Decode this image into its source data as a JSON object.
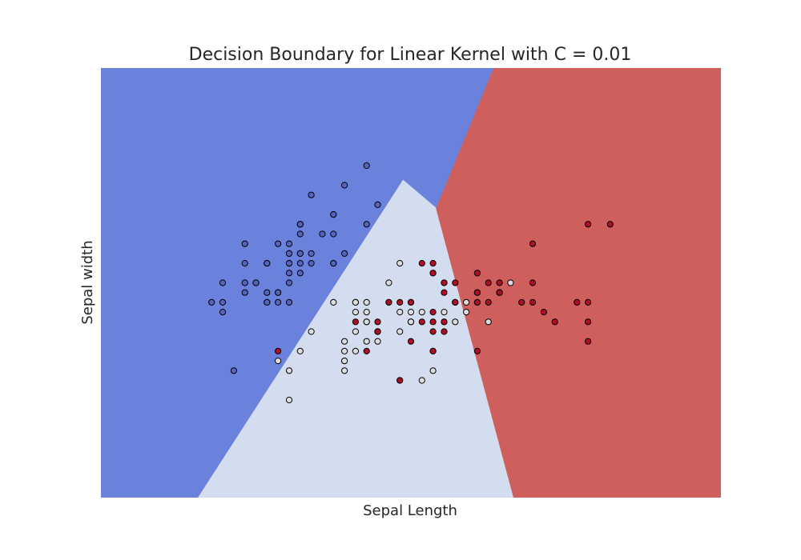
{
  "chart_data": {
    "type": "scatter",
    "title": "Decision Boundary for Linear Kernel with C = 0.01",
    "xlabel": "Sepal Length",
    "ylabel": "Sepal width",
    "xlim": [
      3.3,
      8.9
    ],
    "ylim": [
      1.0,
      5.4
    ],
    "grid": false,
    "legend": "none",
    "regions": [
      {
        "class": "setosa",
        "color": "#6b82dd",
        "polygon": [
          [
            3.3,
            5.4
          ],
          [
            6.85,
            5.4
          ],
          [
            6.33,
            3.96
          ],
          [
            6.03,
            4.25
          ],
          [
            4.18,
            1.0
          ],
          [
            3.3,
            1.0
          ]
        ]
      },
      {
        "class": "versicolor",
        "color": "#d4dcef",
        "polygon": [
          [
            4.18,
            1.0
          ],
          [
            6.03,
            4.25
          ],
          [
            6.33,
            3.96
          ],
          [
            7.03,
            1.0
          ]
        ]
      },
      {
        "class": "virginica",
        "color": "#cf5f5c",
        "polygon": [
          [
            6.85,
            5.4
          ],
          [
            8.9,
            5.4
          ],
          [
            8.9,
            1.0
          ],
          [
            7.03,
            1.0
          ],
          [
            6.33,
            3.96
          ]
        ]
      }
    ],
    "point_colors": {
      "setosa": "#5664bd",
      "versicolor": "#dcdcdc",
      "virginica": "#b00d26"
    },
    "series": [
      {
        "class": "setosa",
        "points": [
          [
            5.1,
            3.5
          ],
          [
            4.9,
            3.0
          ],
          [
            4.7,
            3.2
          ],
          [
            4.6,
            3.1
          ],
          [
            5.0,
            3.6
          ],
          [
            5.4,
            3.9
          ],
          [
            4.6,
            3.4
          ],
          [
            5.0,
            3.4
          ],
          [
            4.4,
            2.9
          ],
          [
            4.9,
            3.1
          ],
          [
            5.4,
            3.7
          ],
          [
            4.8,
            3.4
          ],
          [
            4.8,
            3.0
          ],
          [
            4.3,
            3.0
          ],
          [
            5.8,
            4.0
          ],
          [
            5.7,
            4.4
          ],
          [
            5.4,
            3.9
          ],
          [
            5.1,
            3.5
          ],
          [
            5.7,
            3.8
          ],
          [
            5.1,
            3.8
          ],
          [
            5.4,
            3.4
          ],
          [
            5.1,
            3.7
          ],
          [
            4.6,
            3.6
          ],
          [
            5.1,
            3.3
          ],
          [
            4.8,
            3.4
          ],
          [
            5.0,
            3.0
          ],
          [
            5.0,
            3.4
          ],
          [
            5.2,
            3.5
          ],
          [
            5.2,
            3.4
          ],
          [
            4.7,
            3.2
          ],
          [
            4.8,
            3.1
          ],
          [
            5.4,
            3.4
          ],
          [
            5.2,
            4.1
          ],
          [
            5.5,
            4.2
          ],
          [
            4.9,
            3.1
          ],
          [
            5.0,
            3.2
          ],
          [
            5.5,
            3.5
          ],
          [
            4.9,
            3.6
          ],
          [
            4.4,
            3.0
          ],
          [
            5.1,
            3.4
          ],
          [
            5.0,
            3.5
          ],
          [
            4.5,
            2.3
          ],
          [
            4.4,
            3.2
          ],
          [
            5.0,
            3.5
          ],
          [
            5.1,
            3.8
          ],
          [
            4.8,
            3.0
          ],
          [
            5.1,
            3.8
          ],
          [
            4.6,
            3.2
          ],
          [
            5.3,
            3.7
          ],
          [
            5.0,
            3.3
          ]
        ]
      },
      {
        "class": "versicolor",
        "points": [
          [
            7.0,
            3.2
          ],
          [
            6.4,
            3.2
          ],
          [
            6.9,
            3.1
          ],
          [
            5.5,
            2.3
          ],
          [
            6.5,
            2.8
          ],
          [
            5.7,
            2.8
          ],
          [
            6.3,
            3.3
          ],
          [
            4.9,
            2.4
          ],
          [
            6.6,
            2.9
          ],
          [
            5.2,
            2.7
          ],
          [
            5.0,
            2.0
          ],
          [
            5.9,
            3.0
          ],
          [
            6.0,
            2.2
          ],
          [
            6.1,
            2.9
          ],
          [
            5.6,
            2.9
          ],
          [
            6.7,
            3.1
          ],
          [
            5.6,
            3.0
          ],
          [
            5.8,
            2.7
          ],
          [
            6.2,
            2.2
          ],
          [
            5.6,
            2.5
          ],
          [
            5.9,
            3.2
          ],
          [
            6.1,
            2.8
          ],
          [
            6.3,
            2.5
          ],
          [
            6.1,
            2.8
          ],
          [
            6.4,
            2.9
          ],
          [
            6.6,
            3.0
          ],
          [
            6.8,
            2.8
          ],
          [
            6.7,
            3.0
          ],
          [
            6.0,
            2.9
          ],
          [
            5.7,
            2.6
          ],
          [
            5.5,
            2.4
          ],
          [
            5.5,
            2.4
          ],
          [
            5.8,
            2.7
          ],
          [
            6.0,
            2.7
          ],
          [
            5.4,
            3.0
          ],
          [
            6.0,
            3.4
          ],
          [
            6.7,
            3.1
          ],
          [
            6.3,
            2.3
          ],
          [
            5.6,
            3.0
          ],
          [
            5.5,
            2.5
          ],
          [
            5.5,
            2.6
          ],
          [
            6.1,
            3.0
          ],
          [
            5.8,
            2.6
          ],
          [
            5.0,
            2.3
          ],
          [
            5.6,
            2.7
          ],
          [
            5.7,
            3.0
          ],
          [
            5.7,
            2.9
          ],
          [
            6.2,
            2.9
          ],
          [
            5.1,
            2.5
          ],
          [
            5.7,
            2.8
          ]
        ]
      },
      {
        "class": "virginica",
        "points": [
          [
            6.3,
            3.3
          ],
          [
            5.8,
            2.7
          ],
          [
            7.1,
            3.0
          ],
          [
            6.3,
            2.9
          ],
          [
            6.5,
            3.0
          ],
          [
            7.6,
            3.0
          ],
          [
            4.9,
            2.5
          ],
          [
            7.3,
            2.9
          ],
          [
            6.7,
            2.5
          ],
          [
            7.2,
            3.6
          ],
          [
            6.5,
            3.2
          ],
          [
            6.4,
            2.7
          ],
          [
            6.8,
            3.0
          ],
          [
            5.7,
            2.5
          ],
          [
            5.8,
            2.8
          ],
          [
            6.4,
            3.2
          ],
          [
            6.5,
            3.0
          ],
          [
            7.7,
            3.8
          ],
          [
            7.7,
            2.6
          ],
          [
            6.0,
            2.2
          ],
          [
            6.9,
            3.2
          ],
          [
            5.6,
            2.8
          ],
          [
            7.7,
            2.8
          ],
          [
            6.3,
            2.7
          ],
          [
            6.7,
            3.3
          ],
          [
            7.2,
            3.2
          ],
          [
            6.2,
            2.8
          ],
          [
            6.1,
            3.0
          ],
          [
            6.4,
            2.8
          ],
          [
            7.2,
            3.0
          ],
          [
            7.4,
            2.8
          ],
          [
            7.9,
            3.8
          ],
          [
            6.4,
            2.8
          ],
          [
            6.3,
            2.8
          ],
          [
            6.1,
            2.6
          ],
          [
            7.7,
            3.0
          ],
          [
            6.3,
            3.4
          ],
          [
            6.4,
            3.1
          ],
          [
            6.0,
            3.0
          ],
          [
            6.9,
            3.1
          ],
          [
            6.7,
            3.1
          ],
          [
            6.9,
            3.1
          ],
          [
            5.8,
            2.7
          ],
          [
            6.8,
            3.2
          ],
          [
            6.7,
            3.3
          ],
          [
            6.7,
            3.0
          ],
          [
            6.3,
            2.5
          ],
          [
            6.5,
            3.0
          ],
          [
            6.2,
            3.4
          ],
          [
            5.9,
            3.0
          ]
        ]
      }
    ]
  }
}
